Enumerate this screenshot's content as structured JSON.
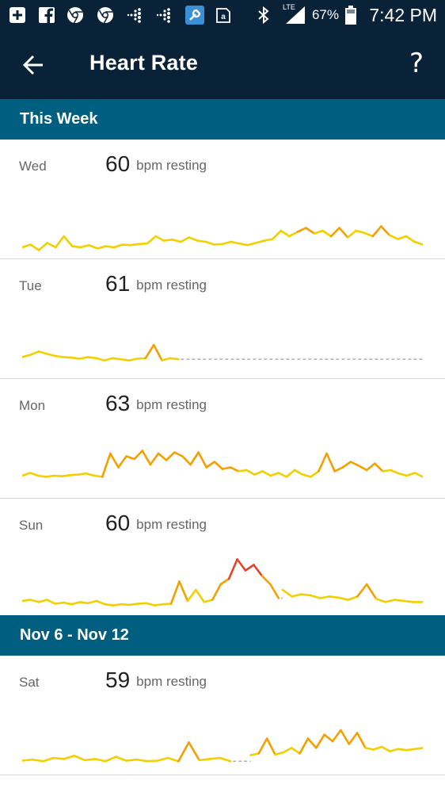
{
  "status_bar": {
    "icons": [
      "plus-box-icon",
      "facebook-icon",
      "chrome-icon",
      "chrome-icon",
      "fitbit-icon",
      "fitbit-icon",
      "wrench-app-icon",
      "kindle-icon",
      "bluetooth-icon",
      "lte-signal-icon",
      "battery-icon"
    ],
    "network": "LTE",
    "battery": "67%",
    "time": "7:42 PM"
  },
  "header": {
    "title": "Heart Rate",
    "help": "?"
  },
  "sections": [
    {
      "title": "This Week",
      "days": [
        {
          "day": "Wed",
          "resting": "60",
          "unit": "bpm resting"
        },
        {
          "day": "Tue",
          "resting": "61",
          "unit": "bpm resting"
        },
        {
          "day": "Mon",
          "resting": "63",
          "unit": "bpm resting"
        },
        {
          "day": "Sun",
          "resting": "60",
          "unit": "bpm resting"
        }
      ]
    },
    {
      "title": "Nov 6 - Nov 12",
      "days": [
        {
          "day": "Sat",
          "resting": "59",
          "unit": "bpm resting"
        }
      ]
    }
  ],
  "colors": {
    "app_bar": "#0a2238",
    "section_header": "#005f80",
    "line_low": "#f2d000",
    "line_mid": "#f5a000",
    "line_high": "#e5432a",
    "no_data": "#aaaaaa"
  },
  "charts": {
    "wed": {
      "segments": [
        [
          0.9,
          0.85,
          0.95,
          0.82,
          0.9,
          0.7,
          0.88,
          0.9,
          0.86,
          0.92,
          0.88,
          0.9,
          0.85,
          0.86,
          0.84,
          0.83,
          0.7,
          0.78,
          0.76,
          0.8,
          0.72,
          0.78,
          0.8,
          0.85,
          0.84,
          0.8,
          0.83,
          0.86,
          0.82,
          0.78,
          0.75,
          0.6,
          0.7,
          0.62,
          0.55,
          0.65,
          0.6,
          0.7,
          0.55,
          0.72,
          0.6,
          0.64,
          0.7,
          0.52,
          0.68,
          0.75,
          0.7,
          0.8,
          0.85
        ]
      ],
      "dashed": []
    },
    "tue": {
      "segments": [
        [
          0.72,
          0.68,
          0.62,
          0.66,
          0.7,
          0.72,
          0.73,
          0.75,
          0.72,
          0.74,
          0.78,
          0.74,
          0.76,
          0.78,
          0.75,
          0.74,
          0.5,
          0.78,
          0.74,
          0.76
        ]
      ],
      "dashed": [
        [
          0.39,
          1.0
        ]
      ]
    },
    "mon": {
      "segments": [
        [
          0.7,
          0.65,
          0.7,
          0.72,
          0.7,
          0.71,
          0.69,
          0.68,
          0.66,
          0.7,
          0.72,
          0.3,
          0.55,
          0.35,
          0.4,
          0.25,
          0.5,
          0.3,
          0.42,
          0.28,
          0.35,
          0.5,
          0.28,
          0.55,
          0.45,
          0.58,
          0.55,
          0.62,
          0.6,
          0.68,
          0.62,
          0.7,
          0.65,
          0.72,
          0.6,
          0.68,
          0.72,
          0.62,
          0.3,
          0.62,
          0.55,
          0.45,
          0.52,
          0.6,
          0.48,
          0.62,
          0.6,
          0.66,
          0.7,
          0.65,
          0.72
        ]
      ],
      "dashed": []
    },
    "sun": {
      "segments": [
        [
          0.8,
          0.78,
          0.82,
          0.78,
          0.85,
          0.83,
          0.86,
          0.82,
          0.84,
          0.8,
          0.86,
          0.88,
          0.86,
          0.87,
          0.85,
          0.84,
          0.88,
          0.86,
          0.85,
          0.45,
          0.8,
          0.6,
          0.82,
          0.78,
          0.5,
          0.4,
          0.05,
          0.25,
          0.15,
          0.35,
          0.5,
          0.75
        ],
        [
          0.6,
          0.72,
          0.68,
          0.7,
          0.75,
          0.72,
          0.74,
          0.78,
          0.72,
          0.5,
          0.76,
          0.82,
          0.78,
          0.8,
          0.82,
          0.82
        ]
      ],
      "splits": [
        0.64
      ],
      "dashed": [
        [
          0.64,
          0.65
        ]
      ]
    },
    "sat": {
      "segments": [
        [
          0.85,
          0.83,
          0.86,
          0.8,
          0.82,
          0.76,
          0.84,
          0.82,
          0.86,
          0.78,
          0.85,
          0.83,
          0.86,
          0.85,
          0.8,
          0.86,
          0.52,
          0.84,
          0.82,
          0.8,
          0.86
        ],
        [
          0.75,
          0.72,
          0.45,
          0.74,
          0.7,
          0.62,
          0.72,
          0.45,
          0.62,
          0.38,
          0.5,
          0.3,
          0.55,
          0.35,
          0.62,
          0.65,
          0.6,
          0.68,
          0.64,
          0.66,
          0.64,
          0.62
        ]
      ],
      "splits": [
        0.52
      ],
      "dashed": [
        [
          0.52,
          0.57
        ]
      ]
    }
  }
}
